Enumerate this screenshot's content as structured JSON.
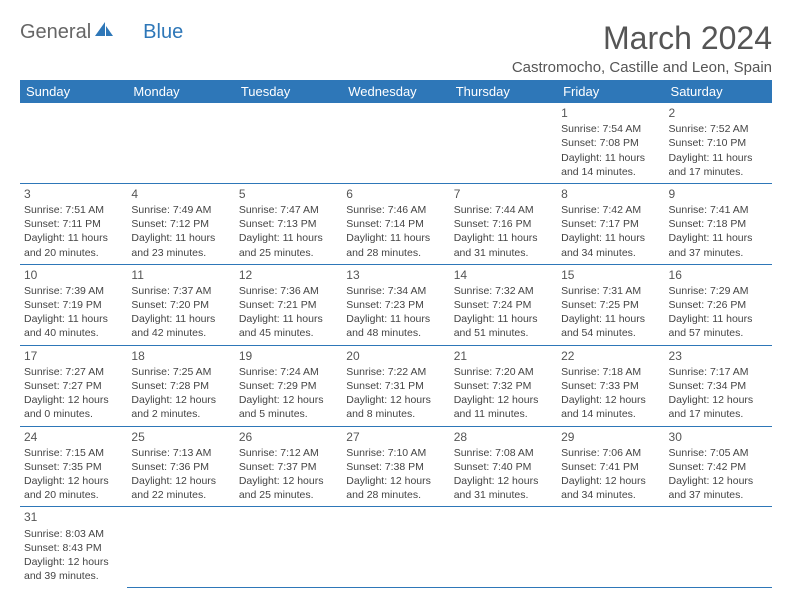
{
  "logo": {
    "general": "General",
    "blue": "Blue"
  },
  "title": "March 2024",
  "location": "Castromocho, Castille and Leon, Spain",
  "colors": {
    "header_bg": "#2e77b8",
    "header_fg": "#ffffff",
    "text": "#444444",
    "border": "#2e77b8"
  },
  "day_headers": [
    "Sunday",
    "Monday",
    "Tuesday",
    "Wednesday",
    "Thursday",
    "Friday",
    "Saturday"
  ],
  "weeks": [
    [
      null,
      null,
      null,
      null,
      null,
      {
        "d": "1",
        "sr": "Sunrise: 7:54 AM",
        "ss": "Sunset: 7:08 PM",
        "dl1": "Daylight: 11 hours",
        "dl2": "and 14 minutes."
      },
      {
        "d": "2",
        "sr": "Sunrise: 7:52 AM",
        "ss": "Sunset: 7:10 PM",
        "dl1": "Daylight: 11 hours",
        "dl2": "and 17 minutes."
      }
    ],
    [
      {
        "d": "3",
        "sr": "Sunrise: 7:51 AM",
        "ss": "Sunset: 7:11 PM",
        "dl1": "Daylight: 11 hours",
        "dl2": "and 20 minutes."
      },
      {
        "d": "4",
        "sr": "Sunrise: 7:49 AM",
        "ss": "Sunset: 7:12 PM",
        "dl1": "Daylight: 11 hours",
        "dl2": "and 23 minutes."
      },
      {
        "d": "5",
        "sr": "Sunrise: 7:47 AM",
        "ss": "Sunset: 7:13 PM",
        "dl1": "Daylight: 11 hours",
        "dl2": "and 25 minutes."
      },
      {
        "d": "6",
        "sr": "Sunrise: 7:46 AM",
        "ss": "Sunset: 7:14 PM",
        "dl1": "Daylight: 11 hours",
        "dl2": "and 28 minutes."
      },
      {
        "d": "7",
        "sr": "Sunrise: 7:44 AM",
        "ss": "Sunset: 7:16 PM",
        "dl1": "Daylight: 11 hours",
        "dl2": "and 31 minutes."
      },
      {
        "d": "8",
        "sr": "Sunrise: 7:42 AM",
        "ss": "Sunset: 7:17 PM",
        "dl1": "Daylight: 11 hours",
        "dl2": "and 34 minutes."
      },
      {
        "d": "9",
        "sr": "Sunrise: 7:41 AM",
        "ss": "Sunset: 7:18 PM",
        "dl1": "Daylight: 11 hours",
        "dl2": "and 37 minutes."
      }
    ],
    [
      {
        "d": "10",
        "sr": "Sunrise: 7:39 AM",
        "ss": "Sunset: 7:19 PM",
        "dl1": "Daylight: 11 hours",
        "dl2": "and 40 minutes."
      },
      {
        "d": "11",
        "sr": "Sunrise: 7:37 AM",
        "ss": "Sunset: 7:20 PM",
        "dl1": "Daylight: 11 hours",
        "dl2": "and 42 minutes."
      },
      {
        "d": "12",
        "sr": "Sunrise: 7:36 AM",
        "ss": "Sunset: 7:21 PM",
        "dl1": "Daylight: 11 hours",
        "dl2": "and 45 minutes."
      },
      {
        "d": "13",
        "sr": "Sunrise: 7:34 AM",
        "ss": "Sunset: 7:23 PM",
        "dl1": "Daylight: 11 hours",
        "dl2": "and 48 minutes."
      },
      {
        "d": "14",
        "sr": "Sunrise: 7:32 AM",
        "ss": "Sunset: 7:24 PM",
        "dl1": "Daylight: 11 hours",
        "dl2": "and 51 minutes."
      },
      {
        "d": "15",
        "sr": "Sunrise: 7:31 AM",
        "ss": "Sunset: 7:25 PM",
        "dl1": "Daylight: 11 hours",
        "dl2": "and 54 minutes."
      },
      {
        "d": "16",
        "sr": "Sunrise: 7:29 AM",
        "ss": "Sunset: 7:26 PM",
        "dl1": "Daylight: 11 hours",
        "dl2": "and 57 minutes."
      }
    ],
    [
      {
        "d": "17",
        "sr": "Sunrise: 7:27 AM",
        "ss": "Sunset: 7:27 PM",
        "dl1": "Daylight: 12 hours",
        "dl2": "and 0 minutes."
      },
      {
        "d": "18",
        "sr": "Sunrise: 7:25 AM",
        "ss": "Sunset: 7:28 PM",
        "dl1": "Daylight: 12 hours",
        "dl2": "and 2 minutes."
      },
      {
        "d": "19",
        "sr": "Sunrise: 7:24 AM",
        "ss": "Sunset: 7:29 PM",
        "dl1": "Daylight: 12 hours",
        "dl2": "and 5 minutes."
      },
      {
        "d": "20",
        "sr": "Sunrise: 7:22 AM",
        "ss": "Sunset: 7:31 PM",
        "dl1": "Daylight: 12 hours",
        "dl2": "and 8 minutes."
      },
      {
        "d": "21",
        "sr": "Sunrise: 7:20 AM",
        "ss": "Sunset: 7:32 PM",
        "dl1": "Daylight: 12 hours",
        "dl2": "and 11 minutes."
      },
      {
        "d": "22",
        "sr": "Sunrise: 7:18 AM",
        "ss": "Sunset: 7:33 PM",
        "dl1": "Daylight: 12 hours",
        "dl2": "and 14 minutes."
      },
      {
        "d": "23",
        "sr": "Sunrise: 7:17 AM",
        "ss": "Sunset: 7:34 PM",
        "dl1": "Daylight: 12 hours",
        "dl2": "and 17 minutes."
      }
    ],
    [
      {
        "d": "24",
        "sr": "Sunrise: 7:15 AM",
        "ss": "Sunset: 7:35 PM",
        "dl1": "Daylight: 12 hours",
        "dl2": "and 20 minutes."
      },
      {
        "d": "25",
        "sr": "Sunrise: 7:13 AM",
        "ss": "Sunset: 7:36 PM",
        "dl1": "Daylight: 12 hours",
        "dl2": "and 22 minutes."
      },
      {
        "d": "26",
        "sr": "Sunrise: 7:12 AM",
        "ss": "Sunset: 7:37 PM",
        "dl1": "Daylight: 12 hours",
        "dl2": "and 25 minutes."
      },
      {
        "d": "27",
        "sr": "Sunrise: 7:10 AM",
        "ss": "Sunset: 7:38 PM",
        "dl1": "Daylight: 12 hours",
        "dl2": "and 28 minutes."
      },
      {
        "d": "28",
        "sr": "Sunrise: 7:08 AM",
        "ss": "Sunset: 7:40 PM",
        "dl1": "Daylight: 12 hours",
        "dl2": "and 31 minutes."
      },
      {
        "d": "29",
        "sr": "Sunrise: 7:06 AM",
        "ss": "Sunset: 7:41 PM",
        "dl1": "Daylight: 12 hours",
        "dl2": "and 34 minutes."
      },
      {
        "d": "30",
        "sr": "Sunrise: 7:05 AM",
        "ss": "Sunset: 7:42 PM",
        "dl1": "Daylight: 12 hours",
        "dl2": "and 37 minutes."
      }
    ],
    [
      {
        "d": "31",
        "sr": "Sunrise: 8:03 AM",
        "ss": "Sunset: 8:43 PM",
        "dl1": "Daylight: 12 hours",
        "dl2": "and 39 minutes."
      },
      null,
      null,
      null,
      null,
      null,
      null
    ]
  ]
}
